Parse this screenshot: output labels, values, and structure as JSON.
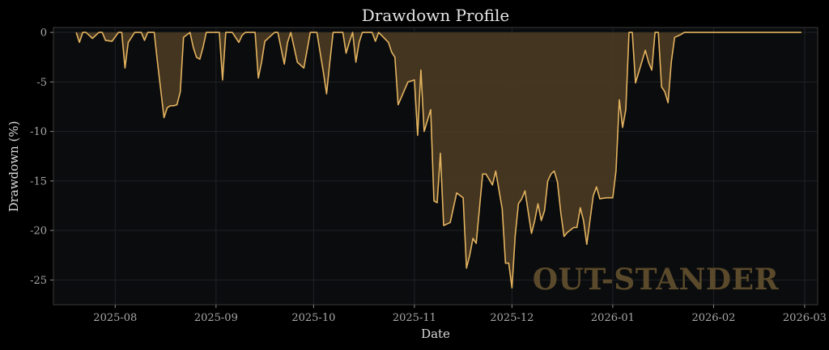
{
  "chart_data": {
    "type": "area",
    "title": "Drawdown Profile",
    "xlabel": "Date",
    "ylabel": "Drawdown (%)",
    "watermark": "OUT-STANDER",
    "ylim": [
      -27.5,
      0.5
    ],
    "xlim": [
      "2025-07-13",
      "2026-03-05"
    ],
    "y_ticks": [
      0,
      -5,
      -10,
      -15,
      -20,
      -25
    ],
    "x_ticks": [
      {
        "date": "2025-08-01",
        "label": "2025-08"
      },
      {
        "date": "2025-09-01",
        "label": "2025-09"
      },
      {
        "date": "2025-10-01",
        "label": "2025-10"
      },
      {
        "date": "2025-11-01",
        "label": "2025-11"
      },
      {
        "date": "2025-12-01",
        "label": "2025-12"
      },
      {
        "date": "2026-01-01",
        "label": "2026-01"
      },
      {
        "date": "2026-02-01",
        "label": "2026-02"
      },
      {
        "date": "2026-03-01",
        "label": "2026-03"
      }
    ],
    "grid": true,
    "colors": {
      "line": "#e3b35f",
      "fill": "#4a3a22",
      "plot_bg": "#0b0c0e",
      "page_bg": "#000000",
      "grid": "#1f2226",
      "spine": "#3a3a3a"
    },
    "series": [
      {
        "x": [
          "2025-07-20",
          "2025-07-21",
          "2025-07-22",
          "2025-07-23",
          "2025-07-25",
          "2025-07-27",
          "2025-07-28",
          "2025-07-29",
          "2025-07-31",
          "2025-08-02",
          "2025-08-03",
          "2025-08-04",
          "2025-08-05",
          "2025-08-07",
          "2025-08-09",
          "2025-08-10",
          "2025-08-11",
          "2025-08-13",
          "2025-08-14",
          "2025-08-16",
          "2025-08-17",
          "2025-08-18",
          "2025-08-19",
          "2025-08-20",
          "2025-08-21",
          "2025-08-22",
          "2025-08-24",
          "2025-08-25",
          "2025-08-26",
          "2025-08-27",
          "2025-08-28",
          "2025-08-29",
          "2025-08-31",
          "2025-09-02",
          "2025-09-03",
          "2025-09-04",
          "2025-09-06",
          "2025-09-07",
          "2025-09-08",
          "2025-09-09",
          "2025-09-10",
          "2025-09-13",
          "2025-09-14",
          "2025-09-15",
          "2025-09-16",
          "2025-09-18",
          "2025-09-19",
          "2025-09-20",
          "2025-09-22",
          "2025-09-23",
          "2025-09-24",
          "2025-09-26",
          "2025-09-28",
          "2025-09-30",
          "2025-10-02",
          "2025-10-04",
          "2025-10-05",
          "2025-10-06",
          "2025-10-07",
          "2025-10-10",
          "2025-10-11",
          "2025-10-12",
          "2025-10-13",
          "2025-10-14",
          "2025-10-15",
          "2025-10-16",
          "2025-10-17",
          "2025-10-18",
          "2025-10-19",
          "2025-10-20",
          "2025-10-21",
          "2025-10-24",
          "2025-10-25",
          "2025-10-26",
          "2025-10-27",
          "2025-10-30",
          "2025-10-31",
          "2025-11-01",
          "2025-11-02",
          "2025-11-03",
          "2025-11-04",
          "2025-11-06",
          "2025-11-07",
          "2025-11-08",
          "2025-11-09",
          "2025-11-10",
          "2025-11-12",
          "2025-11-14",
          "2025-11-16",
          "2025-11-17",
          "2025-11-18",
          "2025-11-19",
          "2025-11-20",
          "2025-11-22",
          "2025-11-23",
          "2025-11-25",
          "2025-11-26",
          "2025-11-28",
          "2025-11-29",
          "2025-11-30",
          "2025-12-01",
          "2025-12-02",
          "2025-12-03",
          "2025-12-04",
          "2025-12-05",
          "2025-12-07",
          "2025-12-08",
          "2025-12-09",
          "2025-12-10",
          "2025-12-11",
          "2025-12-12",
          "2025-12-13",
          "2025-12-14",
          "2025-12-15",
          "2025-12-16",
          "2025-12-17",
          "2025-12-18",
          "2025-12-20",
          "2025-12-21",
          "2025-12-22",
          "2025-12-23",
          "2025-12-24",
          "2025-12-26",
          "2025-12-27",
          "2025-12-28",
          "2025-12-30",
          "2026-01-01",
          "2026-01-02",
          "2026-01-03",
          "2026-01-04",
          "2026-01-05",
          "2026-01-06",
          "2026-01-07",
          "2026-01-08",
          "2026-01-11",
          "2026-01-12",
          "2026-01-13",
          "2026-01-14",
          "2026-01-15",
          "2026-01-16",
          "2026-01-17",
          "2026-01-18",
          "2026-01-19",
          "2026-01-20",
          "2026-01-22",
          "2026-01-23",
          "2026-01-24",
          "2026-01-25",
          "2026-01-26",
          "2026-01-27",
          "2026-01-28",
          "2026-01-29",
          "2026-01-30",
          "2026-01-31",
          "2026-02-01",
          "2026-02-02",
          "2026-02-03",
          "2026-02-04",
          "2026-02-05",
          "2026-02-07",
          "2026-02-08",
          "2026-02-09",
          "2026-02-10",
          "2026-02-11",
          "2026-02-12",
          "2026-02-13",
          "2026-02-14",
          "2026-02-15",
          "2026-02-16",
          "2026-02-18",
          "2026-02-20",
          "2026-02-21",
          "2026-02-22",
          "2026-02-24",
          "2026-02-26",
          "2026-02-28"
        ],
        "y": [
          0,
          -1.0,
          0,
          0,
          -0.6,
          0,
          0,
          -0.8,
          -0.9,
          0,
          0,
          -3.6,
          -1.0,
          0,
          0,
          -0.8,
          0,
          0,
          -3.0,
          -8.6,
          -7.6,
          -7.4,
          -7.4,
          -7.3,
          -6.0,
          -0.5,
          0,
          -1.5,
          -2.5,
          -2.7,
          -1.5,
          0,
          0,
          0,
          -4.8,
          0,
          0,
          -0.5,
          -1.0,
          -0.3,
          0,
          0,
          -4.6,
          -3.0,
          -0.9,
          -0.3,
          0,
          0,
          -3.2,
          -1.0,
          0,
          -3.0,
          -3.6,
          0,
          0,
          -4.0,
          -6.2,
          -3.0,
          0,
          0,
          -2.1,
          -1.0,
          0,
          -3.0,
          -1.0,
          0,
          0,
          0,
          0,
          -0.9,
          0,
          -1.0,
          -2.0,
          -2.5,
          -7.3,
          -5.0,
          -4.9,
          -4.8,
          -10.4,
          -3.8,
          -10.0,
          -7.8,
          -17.0,
          -17.2,
          -12.2,
          -19.5,
          -19.2,
          -16.2,
          -16.7,
          -23.8,
          -22.5,
          -20.8,
          -21.3,
          -14.3,
          -14.3,
          -15.4,
          -14.0,
          -17.8,
          -23.3,
          -23.3,
          -25.8,
          -20.5,
          -17.3,
          -16.8,
          -16.0,
          -20.3,
          -19.0,
          -17.3,
          -19.0,
          -18.0,
          -15.0,
          -14.3,
          -14.0,
          -15.1,
          -18.2,
          -20.6,
          -20.2,
          -19.7,
          -19.7,
          -17.7,
          -19.0,
          -21.4,
          -16.5,
          -15.6,
          -16.8,
          -16.7,
          -16.7,
          -14.0,
          -6.8,
          -9.6,
          -7.8,
          0,
          0,
          -5.1,
          -1.8,
          -3.0,
          -3.8,
          0,
          0,
          -5.5,
          -6.0,
          -7.1,
          -3.0,
          -0.5,
          -0.2,
          0,
          0,
          0,
          0,
          0,
          0,
          0,
          0,
          0,
          0,
          0,
          0,
          0,
          0,
          0,
          0,
          0,
          0,
          0,
          0,
          0,
          0,
          0,
          0,
          0,
          0,
          0,
          0,
          0,
          0,
          0
        ]
      }
    ]
  }
}
